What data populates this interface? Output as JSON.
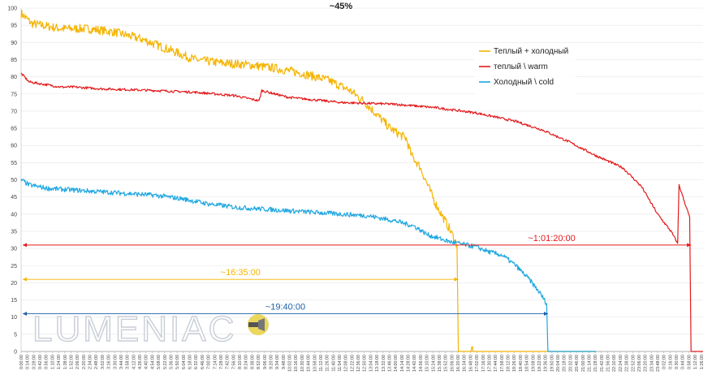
{
  "chart_data": {
    "type": "line",
    "title": "~45%",
    "ylim": [
      0,
      100
    ],
    "y_ticks": [
      0,
      5,
      10,
      15,
      20,
      25,
      30,
      35,
      40,
      45,
      50,
      55,
      60,
      65,
      70,
      75,
      80,
      85,
      90,
      95,
      100
    ],
    "x_range_hours": [
      0,
      25.5
    ],
    "x_tick_step_minutes": 14,
    "grid": true,
    "legend_position": "top-right",
    "series": [
      {
        "name": "Теплый + холодный",
        "color": "#f5b400",
        "points": [
          [
            0,
            98.5
          ],
          [
            0.4,
            95.5
          ],
          [
            1.5,
            94
          ],
          [
            2.5,
            94
          ],
          [
            3.5,
            93
          ],
          [
            4.5,
            91
          ],
          [
            5.5,
            88
          ],
          [
            6.5,
            85
          ],
          [
            7.5,
            84
          ],
          [
            8.5,
            83.5
          ],
          [
            9.5,
            82.5
          ],
          [
            10.5,
            81
          ],
          [
            11.5,
            79
          ],
          [
            12.3,
            76
          ],
          [
            12.8,
            73
          ],
          [
            13.3,
            69
          ],
          [
            13.8,
            65
          ],
          [
            14.4,
            62
          ],
          [
            14.6,
            57
          ],
          [
            14.9,
            54
          ],
          [
            15.5,
            43
          ],
          [
            16.0,
            36
          ],
          [
            16.3,
            31
          ],
          [
            16.35,
            0
          ],
          [
            16.8,
            0
          ],
          [
            16.85,
            1.5
          ],
          [
            16.9,
            0
          ],
          [
            21.5,
            0
          ]
        ]
      },
      {
        "name": "теплый \\ warm",
        "color": "#e31a1c",
        "points": [
          [
            0,
            81
          ],
          [
            0.3,
            78.5
          ],
          [
            1.5,
            77
          ],
          [
            2,
            77
          ],
          [
            3,
            76.5
          ],
          [
            5,
            76
          ],
          [
            6.5,
            75.5
          ],
          [
            8,
            74.5
          ],
          [
            8.9,
            73
          ],
          [
            9.0,
            76
          ],
          [
            10,
            74
          ],
          [
            12,
            72.5
          ],
          [
            14,
            72
          ],
          [
            15.5,
            71
          ],
          [
            17,
            69.5
          ],
          [
            18.5,
            67
          ],
          [
            19.5,
            64.5
          ],
          [
            20.5,
            61
          ],
          [
            21.5,
            57
          ],
          [
            22.5,
            53.5
          ],
          [
            23.2,
            48
          ],
          [
            23.8,
            40
          ],
          [
            24.3,
            35
          ],
          [
            24.55,
            31.5
          ],
          [
            24.6,
            48.5
          ],
          [
            25.0,
            39
          ],
          [
            25.05,
            0
          ],
          [
            25.5,
            0
          ]
        ]
      },
      {
        "name": "Холодный \\ cold",
        "color": "#1ea7e1",
        "points": [
          [
            0,
            50
          ],
          [
            0.3,
            48.5
          ],
          [
            1,
            47.5
          ],
          [
            2,
            47
          ],
          [
            3,
            46.5
          ],
          [
            4,
            46
          ],
          [
            5,
            45.5
          ],
          [
            6,
            44.5
          ],
          [
            7,
            43
          ],
          [
            8,
            42
          ],
          [
            9,
            41.5
          ],
          [
            10,
            41
          ],
          [
            11,
            40.5
          ],
          [
            12,
            40
          ],
          [
            13,
            39.5
          ],
          [
            14,
            38
          ],
          [
            14.7,
            36.5
          ],
          [
            15.2,
            34
          ],
          [
            16,
            32
          ],
          [
            17,
            30.5
          ],
          [
            17.5,
            29
          ],
          [
            18,
            28
          ],
          [
            18.5,
            25
          ],
          [
            19,
            21
          ],
          [
            19.4,
            17
          ],
          [
            19.65,
            14
          ],
          [
            19.7,
            0
          ],
          [
            21.5,
            0
          ]
        ]
      }
    ],
    "annotations": [
      {
        "text": "~1:01:20:00",
        "y": 31,
        "x_from": 0,
        "x_to": 25.05,
        "color": "#e31a1c"
      },
      {
        "text": "~16:35:00",
        "y": 21,
        "x_from": 0,
        "x_to": 16.35,
        "color": "#f5b400"
      },
      {
        "text": "~19:40:00",
        "y": 11,
        "x_from": 0,
        "x_to": 19.7,
        "color": "#1f5fa8"
      }
    ]
  },
  "watermark": {
    "text": "LUMENIAC"
  }
}
